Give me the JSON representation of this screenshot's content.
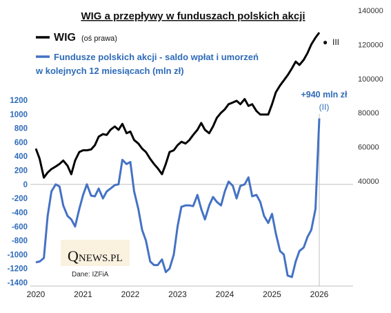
{
  "chart_data": {
    "type": "line",
    "title": "WIG a przepływy w funduszach polskich akcji",
    "x_ticks": [
      "2020",
      "2021",
      "2022",
      "2023",
      "2024",
      "2025",
      "2026"
    ],
    "y_left_ticks": [
      "1200",
      "1000",
      "800",
      "600",
      "400",
      "200",
      "0",
      "-200",
      "-400",
      "-600",
      "-800",
      "-1000",
      "-1200",
      "-1400"
    ],
    "y_right_ticks": [
      "140000",
      "120000",
      "100000",
      "80000",
      "60000",
      "40000"
    ],
    "ylim_left": [
      -1400,
      1200
    ],
    "ylim_right": [
      40000,
      140000
    ],
    "xlim": [
      2020,
      2026.6
    ],
    "grid": false,
    "series": [
      {
        "name": "WIG",
        "name_note": "(oś prawa)",
        "axis": "right",
        "color": "#000000",
        "points": [
          [
            2020.0,
            59000
          ],
          [
            2020.08,
            53000
          ],
          [
            2020.17,
            42000
          ],
          [
            2020.25,
            45000
          ],
          [
            2020.33,
            47000
          ],
          [
            2020.42,
            48500
          ],
          [
            2020.5,
            50000
          ],
          [
            2020.58,
            52000
          ],
          [
            2020.67,
            49000
          ],
          [
            2020.75,
            44000
          ],
          [
            2020.83,
            52000
          ],
          [
            2020.92,
            57000
          ],
          [
            2021.0,
            58000
          ],
          [
            2021.08,
            58000
          ],
          [
            2021.17,
            58500
          ],
          [
            2021.25,
            61000
          ],
          [
            2021.33,
            66000
          ],
          [
            2021.42,
            67500
          ],
          [
            2021.5,
            67000
          ],
          [
            2021.58,
            70000
          ],
          [
            2021.67,
            72000
          ],
          [
            2021.75,
            70000
          ],
          [
            2021.83,
            73500
          ],
          [
            2021.92,
            68000
          ],
          [
            2022.0,
            69000
          ],
          [
            2022.08,
            64000
          ],
          [
            2022.17,
            62000
          ],
          [
            2022.25,
            59000
          ],
          [
            2022.33,
            57000
          ],
          [
            2022.42,
            53000
          ],
          [
            2022.5,
            50000
          ],
          [
            2022.58,
            47500
          ],
          [
            2022.67,
            44000
          ],
          [
            2022.75,
            50000
          ],
          [
            2022.83,
            57000
          ],
          [
            2022.92,
            58000
          ],
          [
            2023.0,
            61000
          ],
          [
            2023.08,
            63000
          ],
          [
            2023.17,
            62000
          ],
          [
            2023.25,
            64000
          ],
          [
            2023.33,
            67000
          ],
          [
            2023.42,
            70000
          ],
          [
            2023.5,
            74000
          ],
          [
            2023.58,
            70000
          ],
          [
            2023.67,
            68000
          ],
          [
            2023.75,
            72000
          ],
          [
            2023.83,
            77000
          ],
          [
            2023.92,
            80000
          ],
          [
            2024.0,
            82000
          ],
          [
            2024.08,
            85000
          ],
          [
            2024.17,
            86000
          ],
          [
            2024.25,
            87000
          ],
          [
            2024.33,
            85000
          ],
          [
            2024.42,
            88000
          ],
          [
            2024.5,
            84000
          ],
          [
            2024.58,
            85000
          ],
          [
            2024.67,
            81000
          ],
          [
            2024.75,
            79000
          ],
          [
            2024.83,
            79000
          ],
          [
            2024.92,
            79000
          ],
          [
            2025.0,
            85000
          ],
          [
            2025.08,
            92000
          ],
          [
            2025.17,
            96000
          ],
          [
            2025.25,
            99000
          ],
          [
            2025.33,
            102000
          ],
          [
            2025.42,
            106000
          ],
          [
            2025.5,
            110000
          ],
          [
            2025.58,
            108000
          ],
          [
            2025.67,
            111000
          ],
          [
            2025.75,
            115000
          ],
          [
            2025.83,
            120000
          ],
          [
            2025.92,
            124000
          ],
          [
            2026.0,
            127000
          ]
        ]
      },
      {
        "name": "Fundusze polskich akcji - saldo wpłat i umorzeń w kolejnych 12 miesiącach (mln zł)",
        "name_lines": [
          "Fundusze polskich akcji - saldo wpłat i umorzeń",
          "w kolejnych 12 miesiącach (mln zł)"
        ],
        "axis": "left",
        "color": "#4472c4",
        "points": [
          [
            2020.0,
            -1110
          ],
          [
            2020.08,
            -1100
          ],
          [
            2020.17,
            -1050
          ],
          [
            2020.25,
            -450
          ],
          [
            2020.33,
            -100
          ],
          [
            2020.42,
            0
          ],
          [
            2020.5,
            -30
          ],
          [
            2020.58,
            -300
          ],
          [
            2020.67,
            -450
          ],
          [
            2020.75,
            -500
          ],
          [
            2020.83,
            -600
          ],
          [
            2020.92,
            -350
          ],
          [
            2021.0,
            -150
          ],
          [
            2021.08,
            0
          ],
          [
            2021.17,
            -160
          ],
          [
            2021.25,
            -170
          ],
          [
            2021.33,
            -60
          ],
          [
            2021.42,
            -200
          ],
          [
            2021.5,
            -100
          ],
          [
            2021.58,
            -60
          ],
          [
            2021.67,
            -10
          ],
          [
            2021.75,
            0
          ],
          [
            2021.83,
            350
          ],
          [
            2021.92,
            290
          ],
          [
            2022.0,
            320
          ],
          [
            2022.08,
            -100
          ],
          [
            2022.17,
            -350
          ],
          [
            2022.25,
            -650
          ],
          [
            2022.33,
            -800
          ],
          [
            2022.42,
            -1100
          ],
          [
            2022.5,
            -1150
          ],
          [
            2022.58,
            -1150
          ],
          [
            2022.67,
            -1070
          ],
          [
            2022.75,
            -1250
          ],
          [
            2022.83,
            -1200
          ],
          [
            2022.92,
            -1000
          ],
          [
            2023.0,
            -600
          ],
          [
            2023.08,
            -320
          ],
          [
            2023.17,
            -300
          ],
          [
            2023.25,
            -300
          ],
          [
            2023.33,
            -310
          ],
          [
            2023.42,
            -150
          ],
          [
            2023.5,
            -350
          ],
          [
            2023.58,
            -500
          ],
          [
            2023.67,
            -300
          ],
          [
            2023.75,
            -180
          ],
          [
            2023.83,
            -250
          ],
          [
            2023.92,
            -300
          ],
          [
            2024.0,
            -100
          ],
          [
            2024.08,
            40
          ],
          [
            2024.17,
            -20
          ],
          [
            2024.25,
            -200
          ],
          [
            2024.33,
            -20
          ],
          [
            2024.42,
            0
          ],
          [
            2024.5,
            100
          ],
          [
            2024.58,
            -170
          ],
          [
            2024.67,
            -150
          ],
          [
            2024.75,
            -250
          ],
          [
            2024.83,
            -450
          ],
          [
            2024.92,
            -550
          ],
          [
            2025.0,
            -420
          ],
          [
            2025.08,
            -700
          ],
          [
            2025.17,
            -950
          ],
          [
            2025.25,
            -1000
          ],
          [
            2025.33,
            -1300
          ],
          [
            2025.42,
            -1320
          ],
          [
            2025.5,
            -1100
          ],
          [
            2025.58,
            -950
          ],
          [
            2025.67,
            -900
          ],
          [
            2025.75,
            -750
          ],
          [
            2025.83,
            -650
          ],
          [
            2025.92,
            -350
          ],
          [
            2026.0,
            940
          ]
        ]
      }
    ],
    "annotations": {
      "fund_last_label": "+940 mln zł",
      "fund_last_sub": "(II)",
      "wig_last_marker": "●",
      "wig_last_label": "III"
    },
    "source": "Dane: IZFiA",
    "logo": {
      "first": "Q",
      "rest": "NEWS.PL"
    }
  }
}
